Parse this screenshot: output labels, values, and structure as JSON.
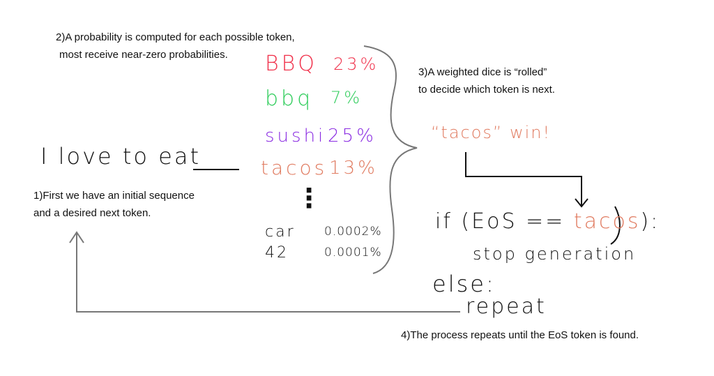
{
  "colors": {
    "red": "#f0304a",
    "green": "#2ecc5a",
    "purple": "#8a2be2",
    "salmon": "#e07a5f",
    "ink": "#111111",
    "gray": "#777777"
  },
  "step1": {
    "line1": "1)First we have an initial sequence",
    "line2": "and a desired next token."
  },
  "step2": {
    "line1": "2)A probability is computed for each possible token,",
    "line2": "most receive near-zero probabilities."
  },
  "step3": {
    "line1": "3)A weighted dice is “rolled”",
    "line2": "to decide which token is next."
  },
  "step4": {
    "text": "4)The process repeats until the EoS token is found."
  },
  "sequence": {
    "text": "I love to eat"
  },
  "tokens": [
    {
      "token": "BBQ",
      "prob": "23%"
    },
    {
      "token": "bbq",
      "prob": "7%"
    },
    {
      "token": "sushi",
      "prob": "25%"
    },
    {
      "token": "tacos",
      "prob": "13%"
    },
    {
      "token": "car",
      "prob": "0.0002%"
    },
    {
      "token": "42",
      "prob": "0.0001%"
    }
  ],
  "ellipsis": "⋮",
  "winner": {
    "text": "“tacos” win!"
  },
  "code": {
    "if_prefix": "if (EoS == ",
    "if_token": "tacos",
    "if_suffix": "):",
    "stop": "stop generation",
    "else": "else:",
    "repeat": "repeat"
  }
}
